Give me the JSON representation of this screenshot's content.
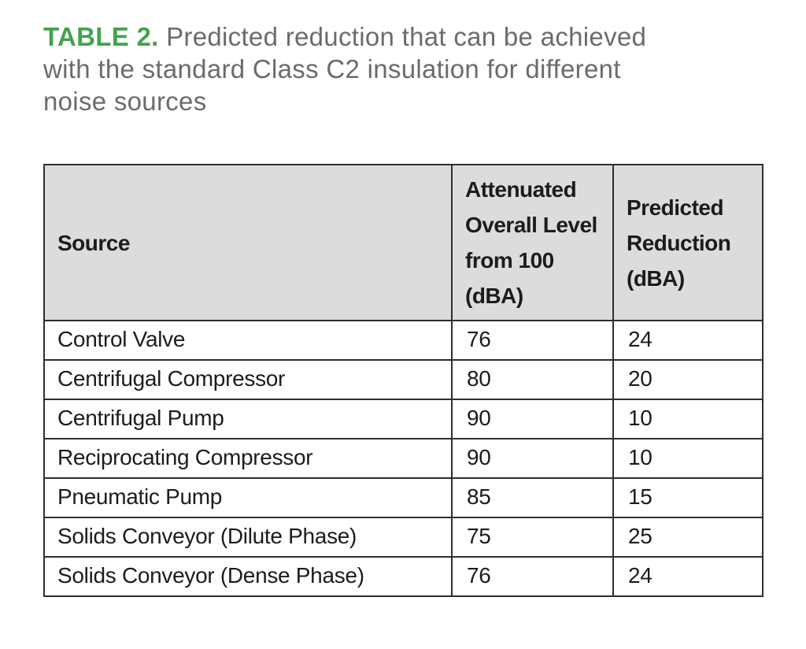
{
  "title": {
    "label": "TABLE 2.",
    "line1_rest": "Predicted reduction that can be achieved",
    "line2": "with the standard Class C2 insulation for different",
    "line3": "noise sources"
  },
  "colors": {
    "accent_green": "#44a24f",
    "title_gray": "#6b6b6b",
    "header_bg": "#dcdcdc",
    "border": "#2e2e2e",
    "body_text": "#1c1c1c"
  },
  "chart_data": {
    "type": "table",
    "title": "TABLE 2. Predicted reduction that can be achieved with the standard Class C2 insulation for different noise sources",
    "columns": [
      "Source",
      "Attenuated Overall Level from 100 (dBA)",
      "Predicted Reduction (dBA)"
    ],
    "rows": [
      [
        "Control Valve",
        76,
        24
      ],
      [
        "Centrifugal Compressor",
        80,
        20
      ],
      [
        "Centrifugal Pump",
        90,
        10
      ],
      [
        "Reciprocating Compressor",
        90,
        10
      ],
      [
        "Pneumatic Pump",
        85,
        15
      ],
      [
        "Solids Conveyor (Dilute Phase)",
        75,
        25
      ],
      [
        "Solids Conveyor (Dense Phase)",
        76,
        24
      ]
    ]
  },
  "table": {
    "headers": {
      "source": "Source",
      "attenuated": "Attenuated Overall Level from 100 (dBA)",
      "reduction": "Predicted Reduction (dBA)"
    },
    "rows": [
      {
        "source": "Control Valve",
        "attenuated": "76",
        "reduction": "24"
      },
      {
        "source": "Centrifugal Compressor",
        "attenuated": "80",
        "reduction": "20"
      },
      {
        "source": "Centrifugal Pump",
        "attenuated": "90",
        "reduction": "10"
      },
      {
        "source": "Reciprocating Compressor",
        "attenuated": "90",
        "reduction": "10"
      },
      {
        "source": "Pneumatic Pump",
        "attenuated": "85",
        "reduction": "15"
      },
      {
        "source": "Solids Conveyor (Dilute Phase)",
        "attenuated": "75",
        "reduction": "25"
      },
      {
        "source": "Solids Conveyor (Dense Phase)",
        "attenuated": "76",
        "reduction": "24"
      }
    ]
  }
}
